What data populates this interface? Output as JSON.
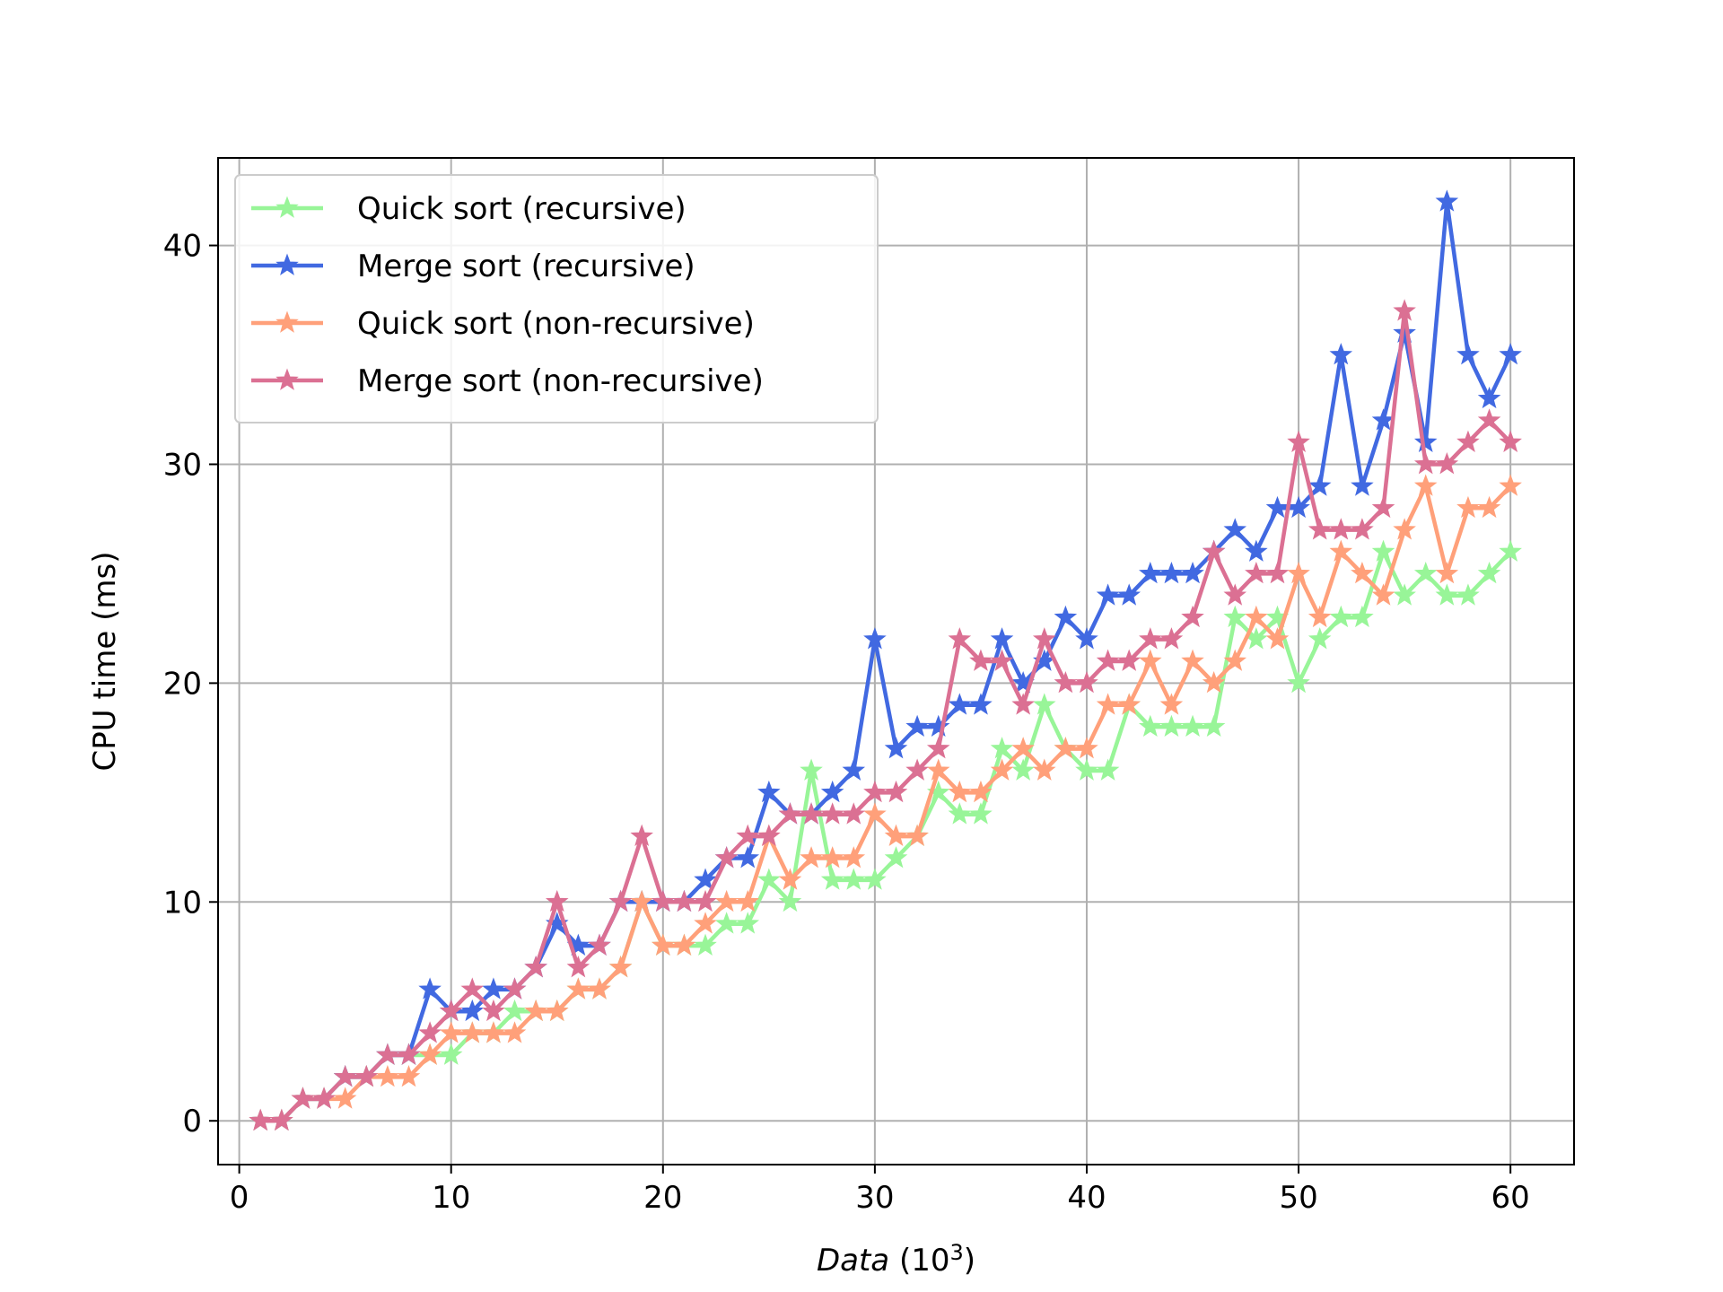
{
  "chart_data": {
    "type": "line",
    "xlabel": "Data",
    "xlabel_unit_base": "10",
    "xlabel_unit_exp": "3",
    "ylabel": "CPU time (ms)",
    "xlim": [
      -1,
      63
    ],
    "ylim": [
      -2,
      44
    ],
    "xticks": [
      0,
      10,
      20,
      30,
      40,
      50,
      60
    ],
    "yticks": [
      0,
      10,
      20,
      30,
      40
    ],
    "grid": true,
    "legend_position": "top-left",
    "marker": "star",
    "x": [
      1,
      2,
      3,
      4,
      5,
      6,
      7,
      8,
      9,
      10,
      11,
      12,
      13,
      14,
      15,
      16,
      17,
      18,
      19,
      20,
      21,
      22,
      23,
      24,
      25,
      26,
      27,
      28,
      29,
      30,
      31,
      32,
      33,
      34,
      35,
      36,
      37,
      38,
      39,
      40,
      41,
      42,
      43,
      44,
      45,
      46,
      47,
      48,
      49,
      50,
      51,
      52,
      53,
      54,
      55,
      56,
      57,
      58,
      59,
      60
    ],
    "series": [
      {
        "name": "Quick sort (recursive)",
        "color": "#98f598",
        "values": [
          0,
          0,
          1,
          1,
          2,
          2,
          3,
          3,
          3,
          3,
          4,
          4,
          5,
          5,
          5,
          6,
          6,
          7,
          10,
          8,
          8,
          8,
          9,
          9,
          11,
          10,
          16,
          11,
          11,
          11,
          12,
          13,
          15,
          14,
          14,
          17,
          16,
          19,
          17,
          16,
          16,
          19,
          18,
          18,
          18,
          18,
          23,
          22,
          23,
          20,
          22,
          23,
          23,
          26,
          24,
          25,
          24,
          24,
          25,
          26
        ]
      },
      {
        "name": "Merge sort (recursive)",
        "color": "#4169e1",
        "values": [
          0,
          0,
          1,
          1,
          2,
          2,
          3,
          3,
          6,
          5,
          5,
          6,
          6,
          7,
          9,
          8,
          8,
          10,
          10,
          10,
          10,
          11,
          12,
          12,
          15,
          14,
          14,
          15,
          16,
          22,
          17,
          18,
          18,
          19,
          19,
          22,
          20,
          21,
          23,
          22,
          24,
          24,
          25,
          25,
          25,
          26,
          27,
          26,
          28,
          28,
          29,
          35,
          29,
          32,
          36,
          31,
          42,
          35,
          33,
          35
        ]
      },
      {
        "name": "Quick sort (non-recursive)",
        "color": "#ffa07a",
        "values": [
          0,
          0,
          1,
          1,
          1,
          2,
          2,
          2,
          3,
          4,
          4,
          4,
          4,
          5,
          5,
          6,
          6,
          7,
          10,
          8,
          8,
          9,
          10,
          10,
          13,
          11,
          12,
          12,
          12,
          14,
          13,
          13,
          16,
          15,
          15,
          16,
          17,
          16,
          17,
          17,
          19,
          19,
          21,
          19,
          21,
          20,
          21,
          23,
          22,
          25,
          23,
          26,
          25,
          24,
          27,
          29,
          25,
          28,
          28,
          29
        ]
      },
      {
        "name": "Merge sort (non-recursive)",
        "color": "#db7093",
        "values": [
          0,
          0,
          1,
          1,
          2,
          2,
          3,
          3,
          4,
          5,
          6,
          5,
          6,
          7,
          10,
          7,
          8,
          10,
          13,
          10,
          10,
          10,
          12,
          13,
          13,
          14,
          14,
          14,
          14,
          15,
          15,
          16,
          17,
          22,
          21,
          21,
          19,
          22,
          20,
          20,
          21,
          21,
          22,
          22,
          23,
          26,
          24,
          25,
          25,
          31,
          27,
          27,
          27,
          28,
          37,
          30,
          30,
          31,
          32,
          31
        ]
      }
    ]
  }
}
